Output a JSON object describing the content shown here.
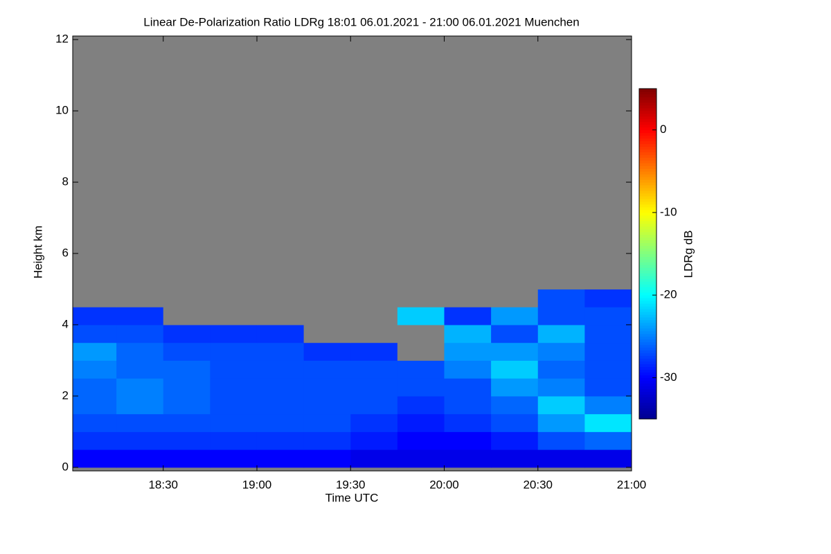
{
  "chart_data": {
    "type": "heatmap",
    "title": "Linear De-Polarization Ratio LDRg   18:01 06.01.2021 - 21:00 06.01.2021 Muenchen",
    "xlabel": "Time UTC",
    "ylabel": "Height km",
    "colorbar_label": "LDRg dB",
    "xlim": [
      18.0167,
      21.0
    ],
    "xticks": [
      {
        "value": 18.5,
        "label": "18:30"
      },
      {
        "value": 19.0,
        "label": "19:00"
      },
      {
        "value": 19.5,
        "label": "19:30"
      },
      {
        "value": 20.0,
        "label": "20:00"
      },
      {
        "value": 20.5,
        "label": "20:30"
      },
      {
        "value": 21.0,
        "label": "21:00"
      }
    ],
    "ylim": [
      -0.1,
      12.1
    ],
    "yticks": [
      0,
      2,
      4,
      6,
      8,
      10,
      12
    ],
    "zlim": [
      -35,
      5
    ],
    "zticks": [
      0,
      -10,
      -20,
      -30
    ],
    "colormap": [
      "#00008f",
      "#0000ff",
      "#0080ff",
      "#00ffff",
      "#80ff80",
      "#ffff00",
      "#ff8000",
      "#ff0000",
      "#800000"
    ],
    "nan_color": "#808080",
    "x_bins": [
      18.0167,
      18.25,
      18.5,
      18.75,
      19.0,
      19.25,
      19.5,
      19.75,
      20.0,
      20.25,
      20.5,
      20.75,
      21.0
    ],
    "y_bins": [
      0,
      0.5,
      1,
      1.5,
      2,
      2.5,
      3,
      3.5,
      4,
      4.5,
      5,
      5.5,
      6
    ],
    "z": [
      [
        -30,
        -30,
        -30,
        -30,
        -30,
        -30,
        -31,
        -31,
        -31,
        -31,
        -31,
        -31
      ],
      [
        -28,
        -28,
        -28,
        -28,
        -28,
        -28,
        -29,
        -30,
        -30,
        -29,
        -27,
        -26
      ],
      [
        -27,
        -27,
        -27,
        -27,
        -27,
        -27,
        -28,
        -29,
        -28,
        -27,
        -24,
        -21
      ],
      [
        -26,
        -25,
        -26,
        -27,
        -27,
        -27,
        -27,
        -28,
        -27,
        -26,
        -22,
        -25
      ],
      [
        -26,
        -25,
        -26,
        -27,
        -27,
        -27,
        -27,
        -27,
        -27,
        -24,
        -25,
        -27
      ],
      [
        -25,
        -26,
        -26,
        -27,
        -27,
        -27,
        -27,
        -27,
        -25,
        -22,
        -26,
        -27
      ],
      [
        -24,
        -26,
        -27,
        -27,
        -27,
        -28,
        -28,
        null,
        -24,
        -24,
        -25,
        -27
      ],
      [
        -27,
        -27,
        -28,
        -28,
        -28,
        null,
        null,
        null,
        -23,
        -27,
        -23,
        -27
      ],
      [
        -28,
        -28,
        null,
        null,
        null,
        null,
        null,
        -22,
        -28,
        -24,
        -27,
        -27
      ],
      [
        null,
        null,
        null,
        null,
        null,
        null,
        null,
        null,
        null,
        null,
        -27,
        -28
      ],
      [
        null,
        null,
        null,
        null,
        null,
        null,
        null,
        null,
        null,
        null,
        null,
        null
      ],
      [
        null,
        null,
        null,
        null,
        null,
        null,
        null,
        null,
        null,
        null,
        null,
        null
      ]
    ]
  }
}
